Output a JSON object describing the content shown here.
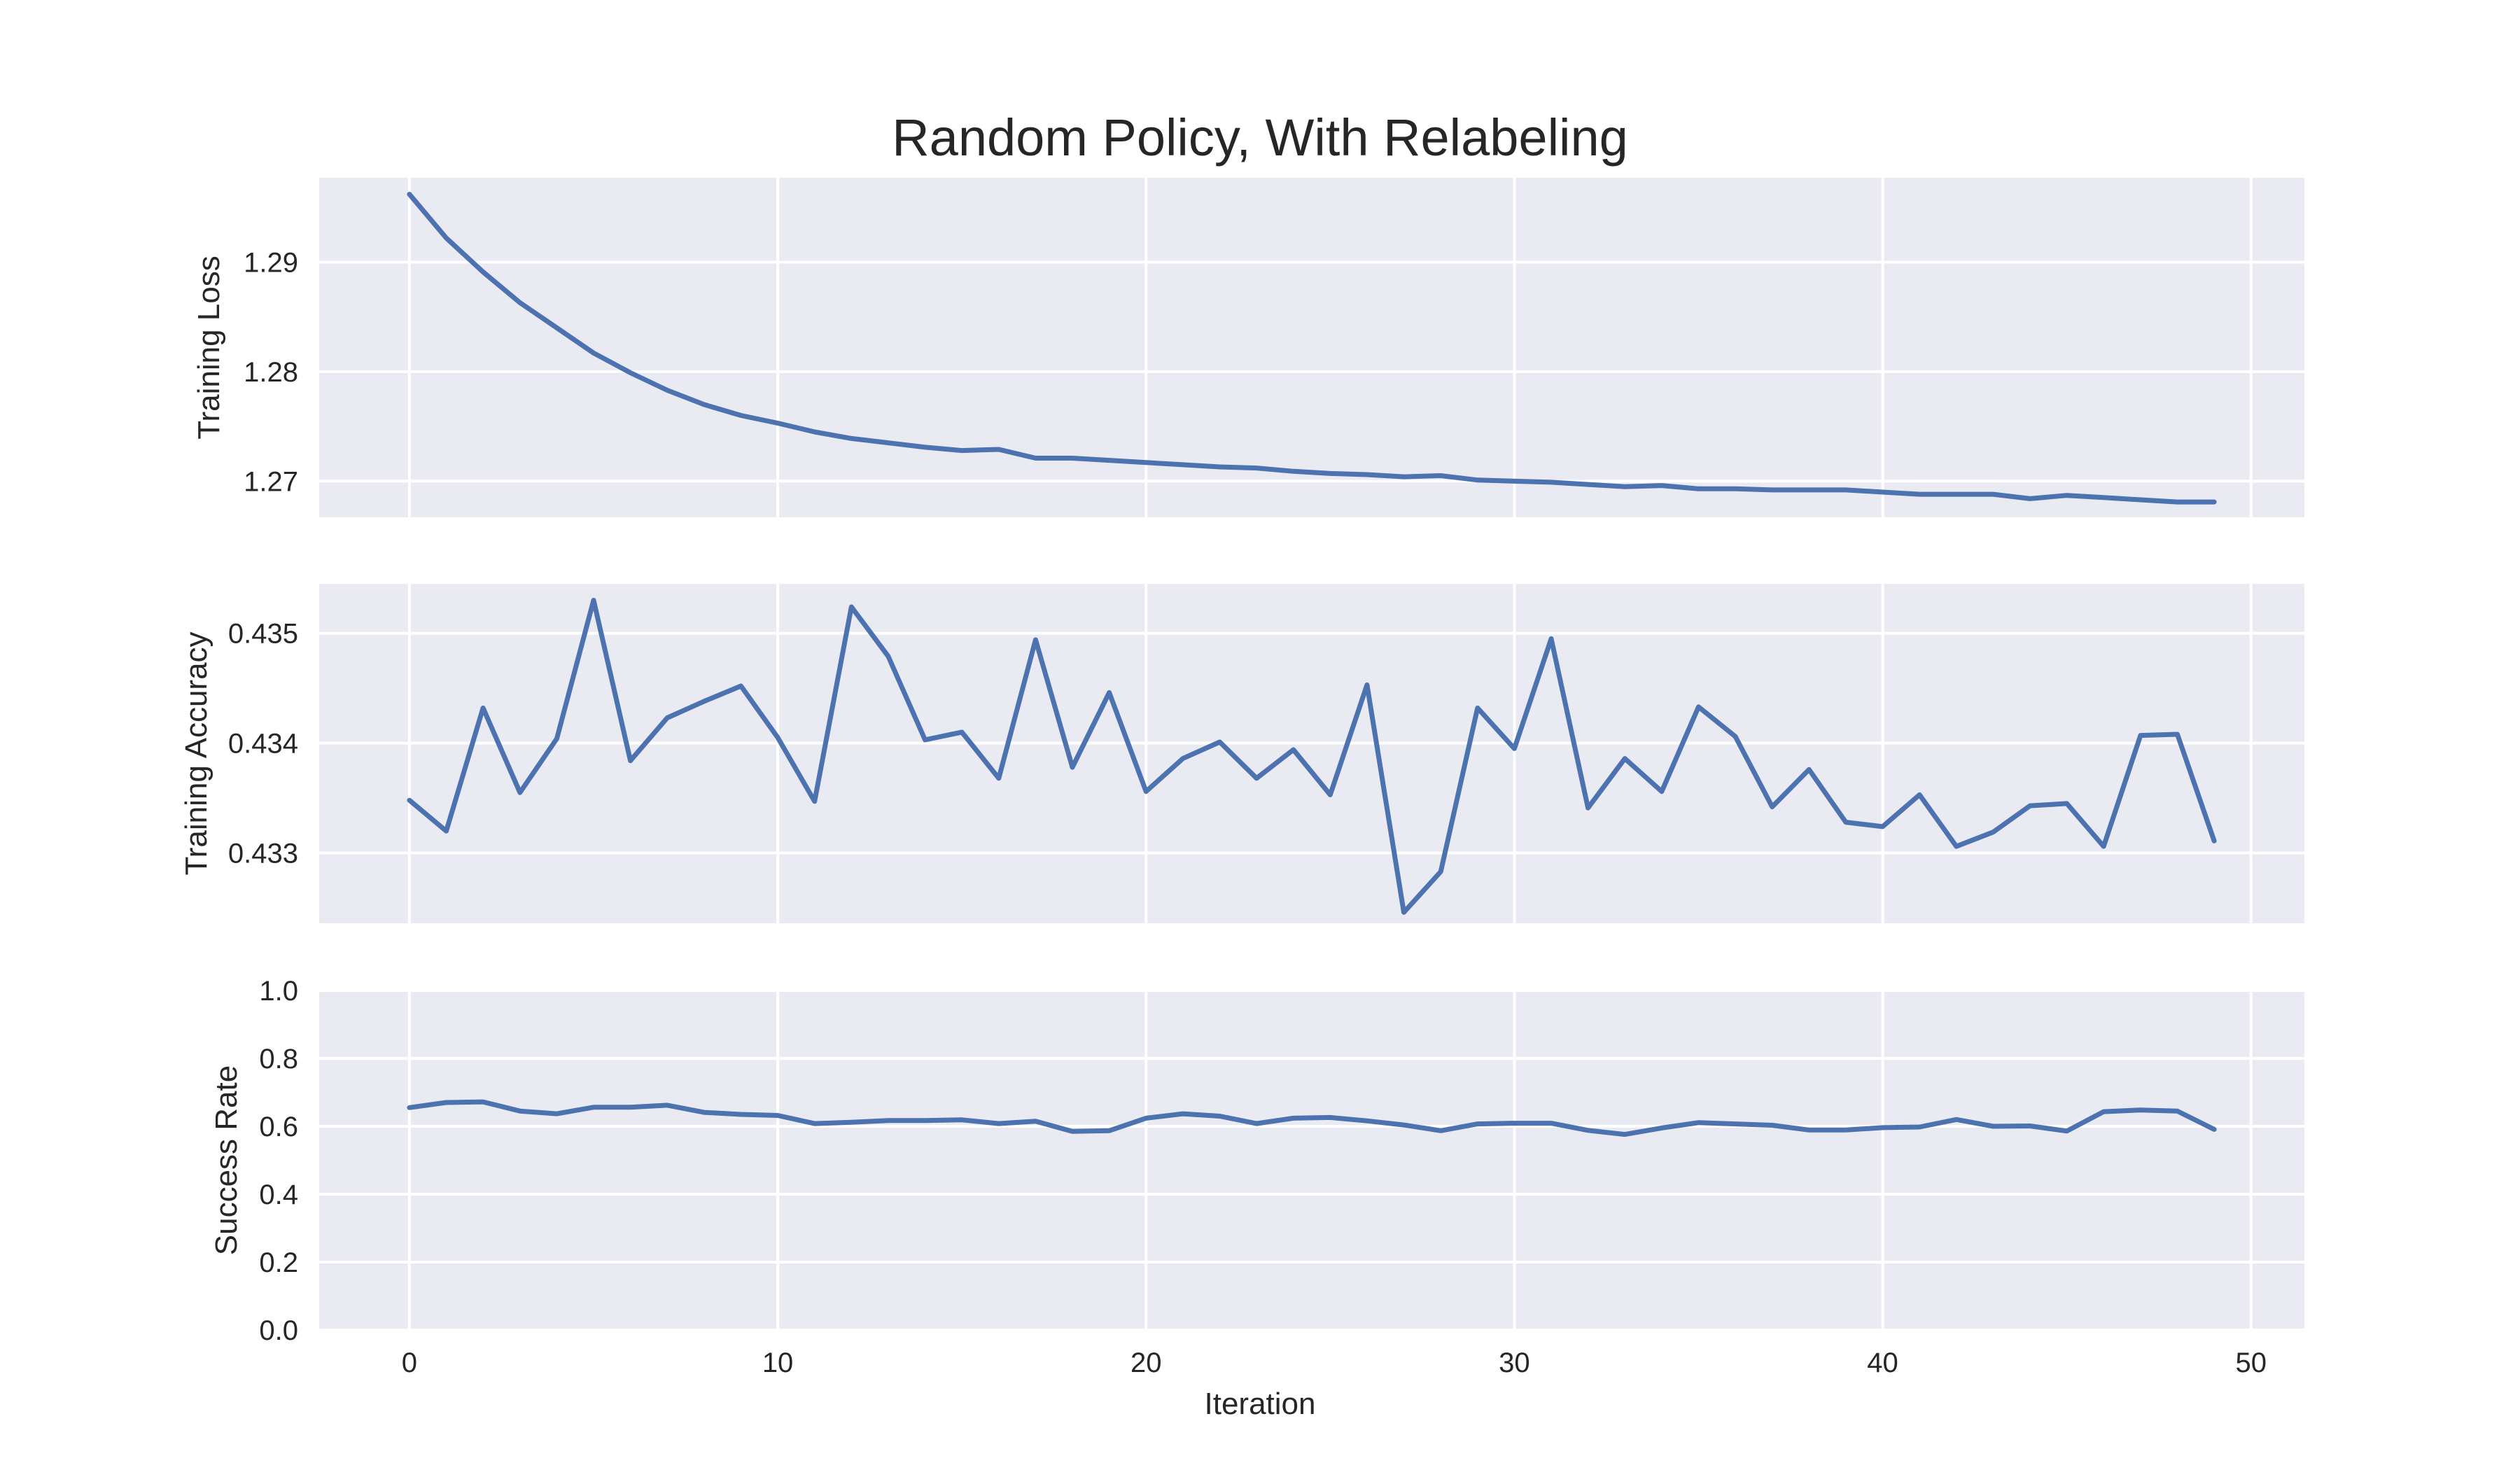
{
  "chart_data": {
    "type": "line",
    "title": "Random Policy, With Relabeling",
    "xlabel": "Iteration",
    "x_ticks": [
      "0",
      "10",
      "20",
      "30",
      "40",
      "50"
    ],
    "xlim": [
      -2.45,
      51.45
    ],
    "grid": true,
    "line_color": "#4C72B0",
    "background_color": "#EAEAF2",
    "grid_color": "#FFFFFF",
    "subplots": [
      {
        "ylabel": "Training Loss",
        "ylim": [
          1.2667,
          1.2977
        ],
        "y_ticks": [
          1.27,
          1.28,
          1.29
        ],
        "y_tick_labels": [
          "1.27",
          "1.28",
          "1.29"
        ],
        "series": [
          {
            "x": [
              0,
              1,
              2,
              3,
              4,
              5,
              6,
              7,
              8,
              9,
              10,
              11,
              12,
              13,
              14,
              15,
              16,
              17,
              18,
              19,
              20,
              21,
              22,
              23,
              24,
              25,
              26,
              27,
              28,
              29,
              30,
              31,
              32,
              33,
              34,
              35,
              36,
              37,
              38,
              39,
              40,
              41,
              42,
              43,
              44,
              45,
              46,
              47,
              48,
              49
            ],
            "values": [
              1.2962,
              1.2922,
              1.2891,
              1.2863,
              1.284,
              1.2817,
              1.2799,
              1.2783,
              1.277,
              1.276,
              1.2753,
              1.2745,
              1.2739,
              1.2735,
              1.2731,
              1.2728,
              1.2729,
              1.2721,
              1.2721,
              1.2719,
              1.2717,
              1.2715,
              1.2713,
              1.2712,
              1.2709,
              1.2707,
              1.2706,
              1.2704,
              1.2705,
              1.2701,
              1.27,
              1.2699,
              1.2697,
              1.2695,
              1.2696,
              1.2693,
              1.2693,
              1.2692,
              1.2692,
              1.2692,
              1.269,
              1.2688,
              1.2688,
              1.2688,
              1.2684,
              1.2687,
              1.2685,
              1.2683,
              1.2681,
              1.2681
            ]
          }
        ]
      },
      {
        "ylabel": "Training Accuracy",
        "ylim": [
          0.43236,
          0.43545
        ],
        "y_ticks": [
          0.433,
          0.434,
          0.435
        ],
        "y_tick_labels": [
          "0.433",
          "0.434",
          "0.435"
        ],
        "series": [
          {
            "x": [
              0,
              1,
              2,
              3,
              4,
              5,
              6,
              7,
              8,
              9,
              10,
              11,
              12,
              13,
              14,
              15,
              16,
              17,
              18,
              19,
              20,
              21,
              22,
              23,
              24,
              25,
              26,
              27,
              28,
              29,
              30,
              31,
              32,
              33,
              34,
              35,
              36,
              37,
              38,
              39,
              40,
              41,
              42,
              43,
              44,
              45,
              46,
              47,
              48,
              49
            ],
            "values": [
              0.43348,
              0.4332,
              0.43432,
              0.43355,
              0.43404,
              0.4353,
              0.43384,
              0.43423,
              0.43438,
              0.43452,
              0.43405,
              0.43347,
              0.43524,
              0.43479,
              0.43403,
              0.4341,
              0.43368,
              0.43494,
              0.43378,
              0.43446,
              0.43356,
              0.43386,
              0.43401,
              0.43368,
              0.43394,
              0.43353,
              0.43453,
              0.43246,
              0.43283,
              0.43432,
              0.43395,
              0.43495,
              0.43341,
              0.43386,
              0.43356,
              0.43433,
              0.43406,
              0.43342,
              0.43376,
              0.43328,
              0.43324,
              0.43353,
              0.43306,
              0.43319,
              0.43343,
              0.43345,
              0.43306,
              0.43407,
              0.43408,
              0.43311
            ]
          }
        ]
      },
      {
        "ylabel": "Success Rate",
        "ylim": [
          0.0,
          1.0
        ],
        "y_ticks": [
          0.0,
          0.2,
          0.4,
          0.6,
          0.8,
          1.0
        ],
        "y_tick_labels": [
          "0.0",
          "0.2",
          "0.4",
          "0.6",
          "0.8",
          "1.0"
        ],
        "series": [
          {
            "x": [
              0,
              1,
              2,
              3,
              4,
              5,
              6,
              7,
              8,
              9,
              10,
              11,
              12,
              13,
              14,
              15,
              16,
              17,
              18,
              19,
              20,
              21,
              22,
              23,
              24,
              25,
              26,
              27,
              28,
              29,
              30,
              31,
              32,
              33,
              34,
              35,
              36,
              37,
              38,
              39,
              40,
              41,
              42,
              43,
              44,
              45,
              46,
              47,
              48,
              49
            ],
            "values": [
              0.655,
              0.67,
              0.672,
              0.645,
              0.637,
              0.656,
              0.656,
              0.662,
              0.641,
              0.635,
              0.632,
              0.608,
              0.612,
              0.617,
              0.617,
              0.619,
              0.608,
              0.615,
              0.585,
              0.587,
              0.624,
              0.637,
              0.63,
              0.608,
              0.624,
              0.626,
              0.616,
              0.604,
              0.587,
              0.607,
              0.609,
              0.609,
              0.588,
              0.576,
              0.595,
              0.611,
              0.607,
              0.603,
              0.589,
              0.589,
              0.596,
              0.598,
              0.62,
              0.6,
              0.601,
              0.586,
              0.643,
              0.648,
              0.645,
              0.591
            ]
          }
        ]
      }
    ]
  }
}
